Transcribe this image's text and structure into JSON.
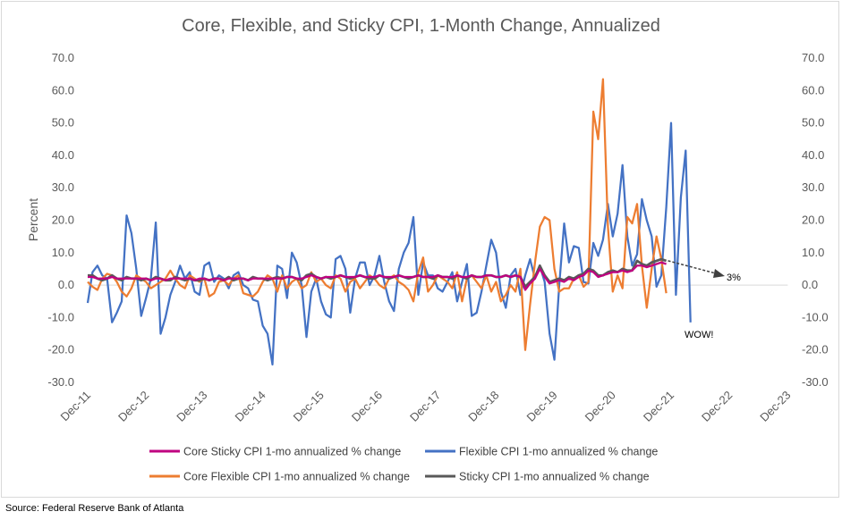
{
  "chart_data": {
    "type": "line",
    "title": "Core, Flexible, and Sticky CPI, 1-Month Change, Annualized",
    "ylabel": "Percent",
    "ylim": [
      -30,
      70
    ],
    "yticks": [
      "70.0",
      "60.0",
      "50.0",
      "40.0",
      "30.0",
      "20.0",
      "10.0",
      "0.0",
      "-10.0",
      "-20.0",
      "-30.0"
    ],
    "y2ticks": [
      "70.0",
      "60.0",
      "50.0",
      "40.0",
      "30.0",
      "20.0",
      "10.0",
      "0.0",
      "-10.0",
      "-20.0",
      "-30.0"
    ],
    "xticks": [
      "Dec-11",
      "Dec-12",
      "Dec-13",
      "Dec-14",
      "Dec-15",
      "Dec-16",
      "Dec-17",
      "Dec-18",
      "Dec-19",
      "Dec-20",
      "Dec-21",
      "Dec-22",
      "Dec-23"
    ],
    "x_start": "2011-12",
    "legend": [
      "Core Sticky CPI 1-mo annualized % change",
      "Flexible CPI 1-mo annualized % change",
      "Core Flexible CPI 1-mo annualized % change",
      "Sticky CPI 1-mo annualized % change"
    ],
    "colors": {
      "core_sticky": "#c00080",
      "flexible": "#4472c4",
      "core_flexible": "#ed7d31",
      "sticky": "#595959"
    },
    "series": [
      {
        "name": "Flexible CPI 1-mo annualized % change",
        "key": "flexible",
        "values": [
          -5.5,
          4.0,
          6.0,
          3.0,
          2.0,
          -11.5,
          -8.5,
          -5.0,
          21.5,
          16.0,
          5.0,
          -9.5,
          -4.0,
          2.0,
          19.3,
          -15.0,
          -10.0,
          -3.0,
          1.0,
          6.0,
          2.0,
          4.0,
          -2.0,
          -3.0,
          6.0,
          7.0,
          1.0,
          3.0,
          2.0,
          -1.0,
          3.0,
          4.0,
          0.0,
          -1.0,
          -4.5,
          -5.0,
          -12.5,
          -15.0,
          -24.5,
          6.0,
          5.0,
          -4.0,
          10.0,
          7.0,
          0.0,
          -16.0,
          -2.0,
          2.0,
          -5.0,
          -9.0,
          -10.0,
          8.0,
          9.0,
          5.0,
          -8.5,
          2.0,
          7.0,
          7.0,
          0.0,
          3.0,
          9.0,
          1.0,
          -5.0,
          -8.0,
          5.0,
          10.0,
          13.0,
          21.0,
          -3.0,
          7.0,
          3.0,
          3.0,
          -1.0,
          -2.0,
          1.0,
          4.0,
          -5.0,
          1.0,
          6.5,
          -9.5,
          -8.5,
          -2.0,
          6.0,
          14.0,
          10.0,
          -2.0,
          -7.0,
          3.0,
          5.0,
          -3.0,
          3.0,
          8.0,
          2.0,
          6.0,
          1.0,
          -15.0,
          -23.0,
          0.0,
          19.0,
          7.0,
          12.0,
          11.5,
          1.0,
          0.5,
          13.0,
          9.0,
          14.0,
          25.0,
          15.0,
          22.0,
          37.0,
          15.0,
          6.0,
          9.5,
          26.5,
          20.0,
          15.0,
          -0.5,
          3.0,
          24.0,
          50.0,
          -3.0,
          27.0,
          41.5,
          -11.5
        ]
      },
      {
        "name": "Core Flexible CPI 1-mo annualized % change",
        "key": "core_flexible",
        "values": [
          1.0,
          -0.5,
          -1.5,
          2.0,
          3.5,
          3.0,
          1.0,
          -2.0,
          -3.5,
          -1.0,
          3.0,
          2.0,
          1.0,
          -1.0,
          0.0,
          1.0,
          2.0,
          4.5,
          2.0,
          0.0,
          -1.0,
          3.0,
          2.0,
          1.0,
          2.0,
          -3.5,
          -2.5,
          1.0,
          1.5,
          0.0,
          2.0,
          3.0,
          -2.5,
          -3.0,
          -3.5,
          -2.0,
          1.0,
          3.0,
          2.0,
          -2.0,
          3.0,
          -1.0,
          1.0,
          2.0,
          -1.0,
          0.0,
          4.0,
          1.0,
          2.0,
          0.0,
          -1.0,
          3.0,
          2.0,
          -2.0,
          1.0,
          2.0,
          -1.0,
          1.0,
          3.0,
          2.0,
          0.0,
          -1.0,
          2.0,
          3.0,
          1.0,
          0.0,
          -1.5,
          -5.0,
          4.0,
          8.5,
          -2.0,
          0.0,
          3.0,
          2.0,
          1.0,
          -1.0,
          4.0,
          -5.0,
          2.0,
          3.0,
          1.0,
          -1.0,
          3.0,
          -2.0,
          1.0,
          -5.0,
          -3.0,
          0.0,
          -2.0,
          5.0,
          -20.0,
          -6.0,
          7.0,
          18.0,
          21.0,
          20.0,
          5.0,
          -2.0,
          -1.0,
          -1.0,
          2.0,
          3.0,
          -0.5,
          1.0,
          53.5,
          45.0,
          63.5,
          18.0,
          -2.0,
          3.0,
          -1.0,
          21.0,
          19.0,
          25.0,
          6.0,
          -7.0,
          5.0,
          15.0,
          8.0,
          -2.5
        ]
      },
      {
        "name": "Sticky CPI 1-mo annualized % change",
        "key": "sticky",
        "values": [
          3.0,
          3.0,
          2.0,
          1.5,
          2.0,
          3.0,
          2.0,
          1.5,
          2.5,
          2.0,
          2.0,
          1.5,
          2.0,
          1.5,
          2.5,
          2.0,
          1.5,
          1.5,
          2.5,
          2.0,
          1.5,
          2.0,
          1.5,
          1.5,
          2.0,
          1.5,
          2.0,
          2.0,
          1.5,
          2.5,
          1.5,
          2.0,
          2.0,
          1.5,
          2.5,
          2.0,
          2.0,
          1.5,
          2.0,
          2.5,
          2.0,
          2.5,
          2.5,
          2.0,
          1.5,
          3.0,
          3.5,
          2.5,
          2.0,
          2.5,
          2.0,
          2.5,
          3.0,
          2.5,
          2.0,
          2.5,
          3.0,
          2.5,
          2.0,
          2.0,
          3.0,
          2.5,
          2.0,
          2.5,
          3.0,
          2.5,
          2.0,
          2.5,
          3.0,
          2.5,
          2.5,
          2.0,
          3.0,
          2.5,
          2.5,
          2.0,
          3.0,
          2.5,
          2.0,
          3.0,
          2.5,
          2.5,
          3.0,
          3.0,
          2.5,
          2.5,
          3.0,
          2.5,
          3.0,
          2.5,
          -0.5,
          1.0,
          2.5,
          6.0,
          3.0,
          1.0,
          1.5,
          2.0,
          1.5,
          2.5,
          2.0,
          3.0,
          3.5,
          5.0,
          4.5,
          3.0,
          3.0,
          4.0,
          4.5,
          4.0,
          5.0,
          4.5,
          4.5,
          7.5,
          6.5,
          6.0,
          7.0,
          7.5,
          8.0,
          7.5
        ]
      },
      {
        "name": "Core Sticky CPI 1-mo annualized % change",
        "key": "core_sticky",
        "values": [
          2.5,
          2.5,
          2.0,
          2.0,
          2.0,
          2.5,
          2.0,
          2.0,
          2.0,
          2.0,
          2.0,
          2.0,
          2.0,
          1.5,
          2.0,
          2.0,
          1.5,
          2.0,
          2.0,
          2.0,
          2.0,
          2.0,
          1.5,
          2.0,
          2.0,
          1.5,
          2.0,
          2.0,
          1.5,
          2.0,
          2.0,
          2.0,
          2.0,
          1.5,
          2.0,
          2.0,
          2.0,
          2.0,
          2.0,
          2.0,
          2.0,
          2.5,
          2.5,
          2.0,
          2.0,
          2.5,
          3.0,
          2.5,
          2.0,
          2.5,
          2.5,
          2.5,
          3.0,
          2.5,
          2.5,
          2.5,
          3.0,
          2.5,
          2.5,
          2.5,
          3.0,
          2.5,
          2.5,
          2.5,
          3.0,
          2.5,
          2.5,
          2.5,
          3.0,
          2.5,
          2.5,
          2.5,
          3.0,
          2.5,
          2.5,
          2.5,
          3.0,
          2.5,
          2.5,
          3.0,
          2.5,
          2.5,
          3.0,
          3.0,
          2.5,
          2.5,
          3.0,
          2.5,
          3.0,
          2.5,
          -1.5,
          0.5,
          2.0,
          5.0,
          2.5,
          0.5,
          1.0,
          1.5,
          1.0,
          2.0,
          1.5,
          2.5,
          3.0,
          4.5,
          4.0,
          2.5,
          3.0,
          3.5,
          4.0,
          4.0,
          4.5,
          4.0,
          4.5,
          6.0,
          6.0,
          5.5,
          6.0,
          6.5,
          7.0,
          6.5
        ]
      }
    ],
    "annotations": {
      "arrow_label": "3%",
      "wow_label": "WOW!"
    },
    "grid": false,
    "legend_position": "bottom"
  },
  "source": "Source: Federal Reserve Bank of Atlanta"
}
